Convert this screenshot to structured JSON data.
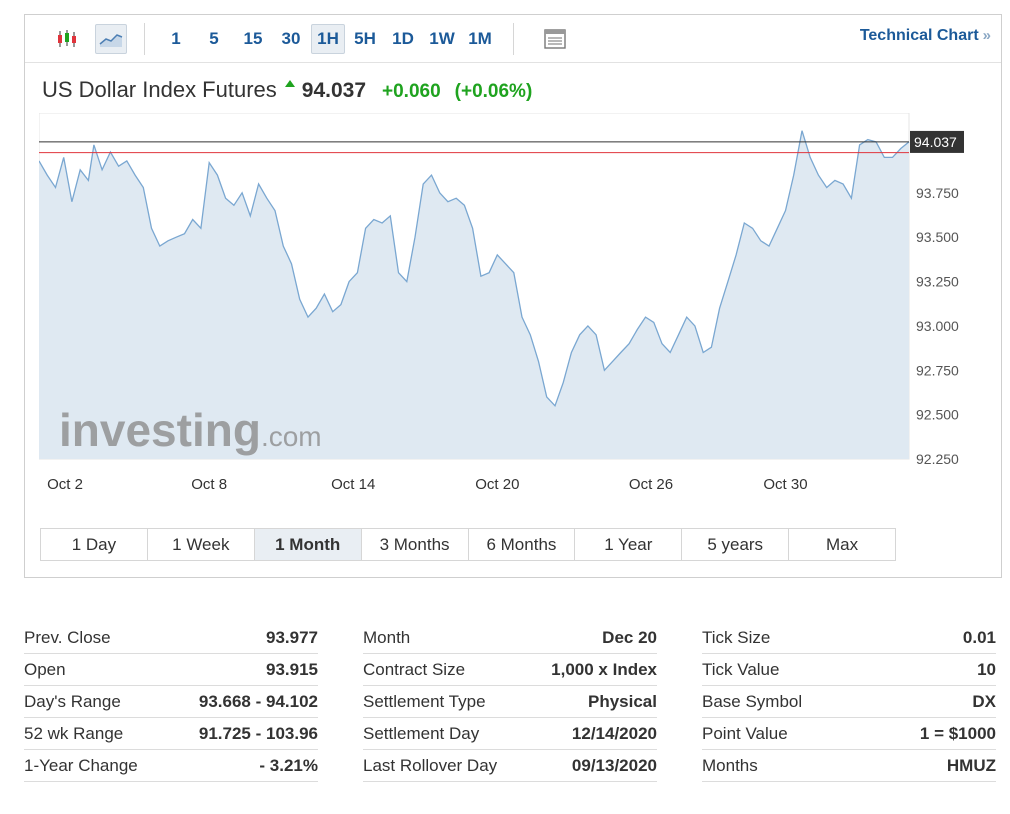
{
  "toolbar": {
    "timeframes": [
      "1",
      "5",
      "15",
      "30",
      "1H",
      "5H",
      "1D",
      "1W",
      "1M"
    ],
    "active_timeframe": "1H",
    "technical_chart_label": "Technical Chart",
    "technical_chart_arrow": "»"
  },
  "quote": {
    "name": "US Dollar Index Futures",
    "price": "94.037",
    "change": "+0.060",
    "change_pct": "(+0.06%)",
    "direction": "up",
    "up_color": "#1fa31f"
  },
  "periods": [
    "1 Day",
    "1 Week",
    "1 Month",
    "3 Months",
    "6 Months",
    "1 Year",
    "5 years",
    "Max"
  ],
  "active_period": "1 Month",
  "stats": {
    "col1": [
      {
        "label": "Prev. Close",
        "value": "93.977"
      },
      {
        "label": "Open",
        "value": "93.915"
      },
      {
        "label": "Day's Range",
        "value": "93.668 - 94.102"
      },
      {
        "label": "52 wk Range",
        "value": "91.725 - 103.96"
      },
      {
        "label": "1-Year Change",
        "value": "- 3.21%"
      }
    ],
    "col2": [
      {
        "label": "Month",
        "value": "Dec 20"
      },
      {
        "label": "Contract Size",
        "value": "1,000 x Index"
      },
      {
        "label": "Settlement Type",
        "value": "Physical"
      },
      {
        "label": "Settlement Day",
        "value": "12/14/2020"
      },
      {
        "label": "Last Rollover Day",
        "value": "09/13/2020"
      }
    ],
    "col3": [
      {
        "label": "Tick Size",
        "value": "0.01"
      },
      {
        "label": "Tick Value",
        "value": "10"
      },
      {
        "label": "Base Symbol",
        "value": "DX"
      },
      {
        "label": "Point Value",
        "value": "1 = $1000"
      },
      {
        "label": "Months",
        "value": "HMUZ"
      }
    ]
  },
  "chart_data": {
    "type": "area",
    "title": "",
    "xlabel": "",
    "ylabel": "",
    "ylim": [
      92.25,
      94.2
    ],
    "x_ticks": [
      "Oct 2",
      "Oct 8",
      "Oct 14",
      "Oct 20",
      "Oct 26",
      "Oct 30"
    ],
    "y_ticks": [
      "92.250",
      "92.500",
      "92.750",
      "93.000",
      "93.250",
      "93.500",
      "93.750"
    ],
    "last_price_label": "94.037",
    "last_price": 94.037,
    "prev_close": 93.977,
    "line_color": "#7aa7d1",
    "fill_color": "#dfe9f2",
    "prev_close_line_color": "#e0343c",
    "last_line_color": "#333333",
    "watermark_brand": "investing",
    "watermark_suffix": ".com",
    "series": [
      {
        "x": [
          0,
          0.3,
          0.6,
          0.9,
          1.2,
          1.5,
          1.8,
          2.0,
          2.3,
          2.6,
          2.9,
          3.2,
          3.5,
          3.8,
          4.1,
          4.4,
          4.7,
          5.0,
          5.3,
          5.6,
          5.9,
          6.2,
          6.5,
          6.8,
          7.1,
          7.4,
          7.7,
          8.0,
          8.3,
          8.6,
          8.9,
          9.2,
          9.5,
          9.8,
          10.1,
          10.4,
          10.7,
          11.0,
          11.3,
          11.6,
          11.9,
          12.2,
          12.5,
          12.8,
          13.1,
          13.4,
          13.7,
          14.0,
          14.3,
          14.6,
          14.9,
          15.2,
          15.5,
          15.8,
          16.1,
          16.4,
          16.7,
          17.0,
          17.3,
          17.6,
          17.9,
          18.2,
          18.5,
          18.8,
          19.1,
          19.4,
          19.7,
          20.0,
          20.3,
          20.6,
          20.9,
          21.2,
          21.5,
          21.8,
          22.1,
          22.4,
          22.7,
          23.0,
          23.3,
          23.6,
          23.9,
          24.2,
          24.5,
          24.8,
          25.1,
          25.4,
          25.7,
          26.0,
          26.3,
          26.6,
          26.9,
          27.2,
          27.5,
          27.8,
          28.1,
          28.4,
          28.7,
          29.0,
          29.3,
          29.6,
          29.9,
          30.2,
          30.5,
          30.8,
          31.1,
          31.4,
          31.7
        ],
        "values": [
          93.93,
          93.85,
          93.78,
          93.95,
          93.7,
          93.88,
          93.82,
          94.02,
          93.88,
          93.98,
          93.9,
          93.93,
          93.85,
          93.78,
          93.55,
          93.45,
          93.48,
          93.5,
          93.52,
          93.6,
          93.55,
          93.92,
          93.85,
          93.72,
          93.68,
          93.75,
          93.62,
          93.8,
          93.72,
          93.65,
          93.45,
          93.35,
          93.15,
          93.05,
          93.1,
          93.18,
          93.08,
          93.12,
          93.25,
          93.3,
          93.55,
          93.6,
          93.58,
          93.62,
          93.3,
          93.25,
          93.5,
          93.8,
          93.85,
          93.75,
          93.7,
          93.72,
          93.68,
          93.55,
          93.28,
          93.3,
          93.4,
          93.35,
          93.3,
          93.05,
          92.95,
          92.8,
          92.6,
          92.55,
          92.68,
          92.85,
          92.95,
          93.0,
          92.95,
          92.75,
          92.8,
          92.85,
          92.9,
          92.98,
          93.05,
          93.02,
          92.9,
          92.85,
          92.95,
          93.05,
          93.0,
          92.85,
          92.88,
          93.1,
          93.25,
          93.4,
          93.58,
          93.55,
          93.48,
          93.45,
          93.55,
          93.65,
          93.85,
          94.1,
          93.95,
          93.85,
          93.78,
          93.82,
          93.8,
          93.72,
          94.02,
          94.05,
          94.037,
          93.95,
          93.95,
          94.0,
          94.037
        ]
      }
    ]
  }
}
